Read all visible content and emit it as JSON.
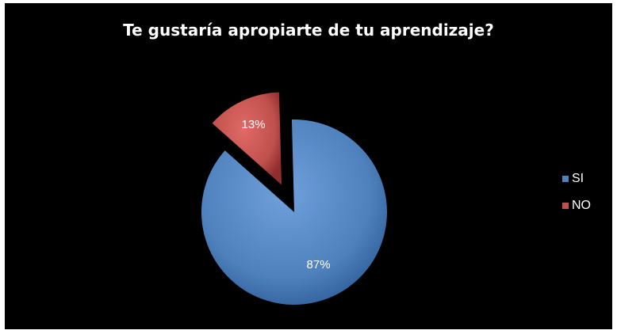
{
  "chart_data": {
    "type": "pie",
    "title": "Te gustaría apropiarte de tu aprendizaje?",
    "slices": [
      {
        "label": "SI",
        "value": 87,
        "display": "87%",
        "color": "#4f81bd",
        "exploded": false
      },
      {
        "label": "NO",
        "value": 13,
        "display": "13%",
        "color": "#c0504d",
        "exploded": true
      }
    ],
    "legend": {
      "placement": "right"
    },
    "background": "#000000"
  }
}
